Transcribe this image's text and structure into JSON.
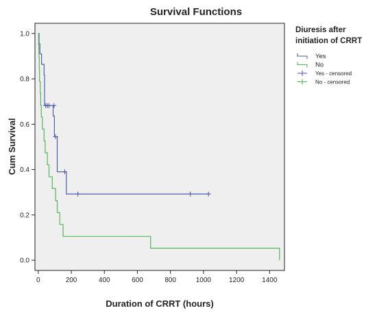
{
  "chart_data": {
    "type": "line",
    "subtype": "kaplan-meier-step",
    "title": "Survival Functions",
    "xlabel": "Duration of CRRT (hours)",
    "ylabel": "Cum Survival",
    "xlim": [
      -20,
      1490
    ],
    "ylim": [
      -0.045,
      1.045
    ],
    "xticks": [
      0,
      200,
      400,
      600,
      800,
      1000,
      1200,
      1400
    ],
    "yticks": [
      0.0,
      0.2,
      0.4,
      0.6,
      0.8,
      1.0
    ],
    "ytick_labels": [
      "0.0",
      "0.2",
      "0.4",
      "0.6",
      "0.8",
      "1.0"
    ],
    "grid": false,
    "plot_background": "#efefef",
    "legend": {
      "title_lines": [
        "Diuresis after",
        "initiation of CRRT"
      ],
      "placement": "right-top",
      "entries": [
        {
          "label": "Yes",
          "kind": "step",
          "color": "#4d5fa8"
        },
        {
          "label": "No",
          "kind": "step",
          "color": "#55b555"
        },
        {
          "label": "Yes - censored",
          "kind": "censor",
          "color": "#4d5fa8"
        },
        {
          "label": "No - censored",
          "kind": "censor",
          "color": "#55b555"
        }
      ]
    },
    "series": [
      {
        "name": "Yes",
        "color": "#4d5fa8",
        "steps": [
          [
            0,
            1.0
          ],
          [
            5,
            0.955
          ],
          [
            10,
            0.91
          ],
          [
            20,
            0.864
          ],
          [
            35,
            0.818
          ],
          [
            38,
            0.682
          ],
          [
            90,
            0.636
          ],
          [
            98,
            0.545
          ],
          [
            115,
            0.39
          ],
          [
            170,
            0.292
          ],
          [
            1035,
            0.292
          ]
        ],
        "censored": [
          [
            45,
            0.682
          ],
          [
            55,
            0.682
          ],
          [
            65,
            0.682
          ],
          [
            95,
            0.682
          ],
          [
            105,
            0.545
          ],
          [
            160,
            0.39
          ],
          [
            240,
            0.292
          ],
          [
            920,
            0.292
          ],
          [
            1030,
            0.292
          ]
        ]
      },
      {
        "name": "No",
        "color": "#55b555",
        "steps": [
          [
            0,
            1.0
          ],
          [
            2,
            0.947
          ],
          [
            4,
            0.895
          ],
          [
            6,
            0.842
          ],
          [
            8,
            0.789
          ],
          [
            12,
            0.737
          ],
          [
            15,
            0.684
          ],
          [
            18,
            0.632
          ],
          [
            25,
            0.579
          ],
          [
            35,
            0.526
          ],
          [
            42,
            0.474
          ],
          [
            55,
            0.421
          ],
          [
            65,
            0.368
          ],
          [
            85,
            0.316
          ],
          [
            105,
            0.263
          ],
          [
            115,
            0.21
          ],
          [
            130,
            0.158
          ],
          [
            150,
            0.105
          ],
          [
            680,
            0.053
          ],
          [
            1460,
            0.0
          ]
        ],
        "censored": []
      }
    ]
  }
}
